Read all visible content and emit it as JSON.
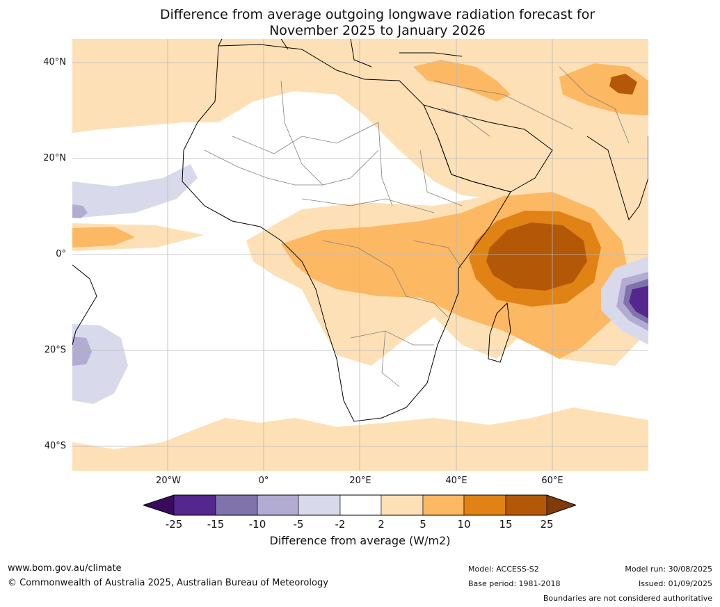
{
  "title_line1": "Difference from average outgoing longwave radiation forecast for",
  "title_line2": "November 2025 to January 2026",
  "axes": {
    "lat_ticks": [
      "40°N",
      "20°N",
      "0°",
      "20°S",
      "40°S"
    ],
    "lon_ticks": [
      "20°W",
      "0°",
      "20°E",
      "40°E",
      "60°E"
    ]
  },
  "colorbar": {
    "title": "Difference from average (W/m2)",
    "ticks": [
      "-25",
      "-15",
      "-10",
      "-5",
      "-2",
      "2",
      "5",
      "10",
      "15",
      "25"
    ],
    "colors": [
      "#3a0a5e",
      "#54278f",
      "#8073ac",
      "#b2abd2",
      "#d8daeb",
      "#ffffff",
      "#fee0b6",
      "#fdb863",
      "#e08214",
      "#b35806",
      "#7f3b08"
    ]
  },
  "footer": {
    "website": "www.bom.gov.au/climate",
    "copyright": "© Commonwealth of Australia 2025, Australian Bureau of Meteorology",
    "model": "Model: ACCESS-S2",
    "base_period": "Base period: 1981-2018",
    "model_run": "Model run: 30/08/2025",
    "issued": "Issued: 01/09/2025",
    "disclaimer": "Boundaries are not considered authoritative"
  }
}
